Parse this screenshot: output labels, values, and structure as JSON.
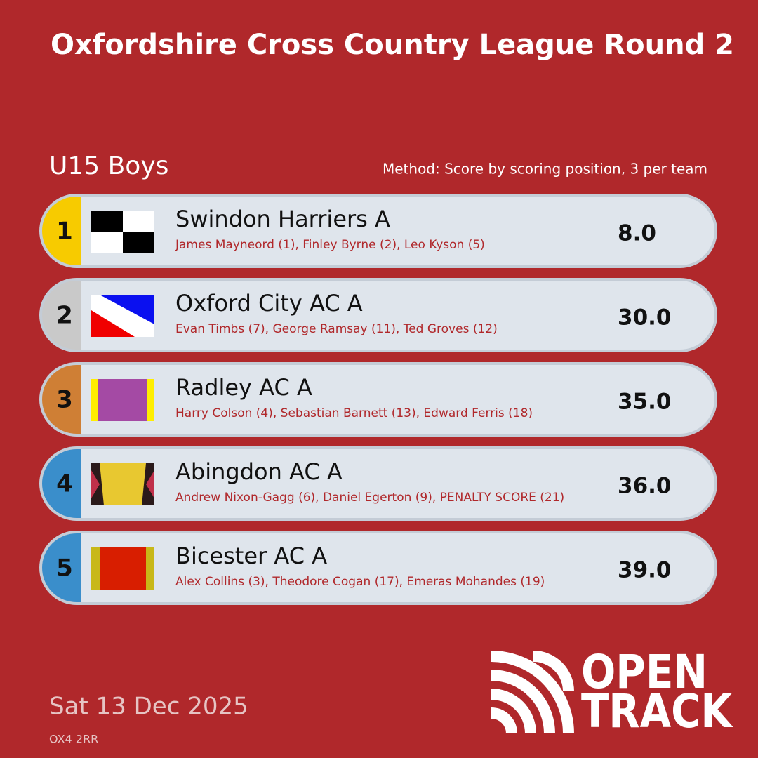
{
  "header": {
    "title": "Oxfordshire Cross Country League Round 2",
    "category": "U15 Boys",
    "method": "Method: Score by scoring position, 3 per team"
  },
  "results": [
    {
      "position": 1,
      "team": "Swindon Harriers A",
      "runners": "James Mayneord (1), Finley Byrne (2), Leo Kyson (5)",
      "score": "8.0"
    },
    {
      "position": 2,
      "team": "Oxford City AC A",
      "runners": "Evan Timbs (7), George Ramsay (11), Ted Groves (12)",
      "score": "30.0"
    },
    {
      "position": 3,
      "team": "Radley AC A",
      "runners": "Harry Colson (4), Sebastian Barnett (13), Edward Ferris (18)",
      "score": "35.0"
    },
    {
      "position": 4,
      "team": "Abingdon AC A",
      "runners": "Andrew Nixon-Gagg (6), Daniel Egerton (9), PENALTY SCORE (21)",
      "score": "36.0"
    },
    {
      "position": 5,
      "team": "Bicester AC A",
      "runners": "Alex Collins (3), Theodore Cogan (17), Emeras Mohandes (19)",
      "score": "39.0"
    }
  ],
  "footer": {
    "date": "Sat 13 Dec 2025",
    "postcode": "OX4 2RR",
    "logo": [
      "OPEN",
      "TRACK"
    ]
  }
}
